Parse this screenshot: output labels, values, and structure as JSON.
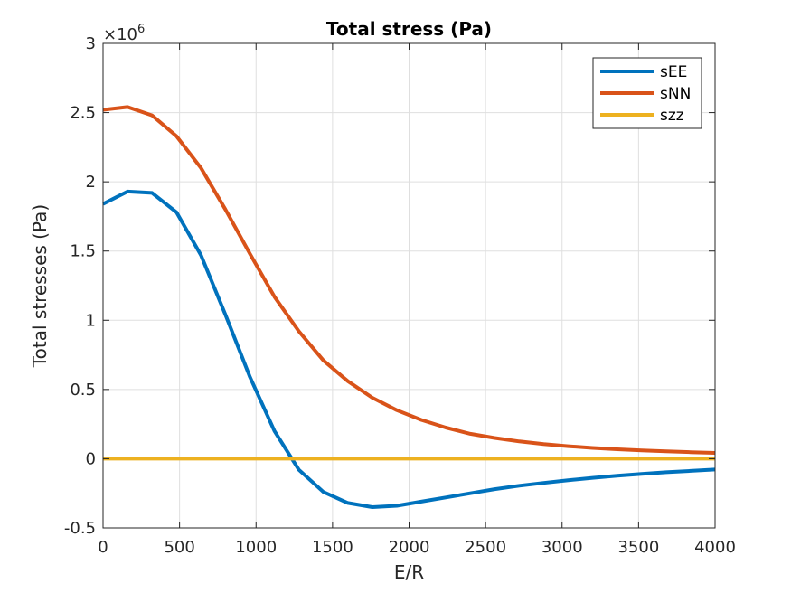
{
  "chart_data": {
    "type": "line",
    "title": "Total stress (Pa)",
    "xlabel": "E/R",
    "ylabel": "Total stresses (Pa)",
    "y_exponent_label": "×10",
    "y_exponent_power": "6",
    "xlim": [
      0,
      4000
    ],
    "ylim": [
      -0.5,
      3
    ],
    "x_ticks": [
      0,
      500,
      1000,
      1500,
      2000,
      2500,
      3000,
      3500,
      4000
    ],
    "x_tick_labels": [
      "0",
      "500",
      "1000",
      "1500",
      "2000",
      "2500",
      "3000",
      "3500",
      "4000"
    ],
    "y_ticks": [
      -0.5,
      0,
      0.5,
      1,
      1.5,
      2,
      2.5,
      3
    ],
    "y_tick_labels": [
      "-0.5",
      "0",
      "0.5",
      "1",
      "1.5",
      "2",
      "2.5",
      "3"
    ],
    "grid": true,
    "legend_position": "top-right",
    "series": [
      {
        "name": "sEE",
        "color": "#0072BD",
        "x": [
          0,
          160,
          320,
          480,
          640,
          800,
          960,
          1120,
          1280,
          1440,
          1600,
          1760,
          1920,
          2080,
          2240,
          2400,
          2560,
          2720,
          2880,
          3040,
          3200,
          3360,
          3520,
          3680,
          3840,
          4000
        ],
        "y": [
          1.84,
          1.93,
          1.92,
          1.78,
          1.47,
          1.04,
          0.59,
          0.2,
          -0.08,
          -0.24,
          -0.32,
          -0.35,
          -0.34,
          -0.31,
          -0.28,
          -0.25,
          -0.22,
          -0.195,
          -0.175,
          -0.155,
          -0.138,
          -0.123,
          -0.11,
          -0.098,
          -0.088,
          -0.078
        ]
      },
      {
        "name": "sNN",
        "color": "#D95319",
        "x": [
          0,
          160,
          320,
          480,
          640,
          800,
          960,
          1120,
          1280,
          1440,
          1600,
          1760,
          1920,
          2080,
          2240,
          2400,
          2560,
          2720,
          2880,
          3040,
          3200,
          3360,
          3520,
          3680,
          3840,
          4000
        ],
        "y": [
          2.52,
          2.54,
          2.48,
          2.33,
          2.1,
          1.8,
          1.48,
          1.17,
          0.92,
          0.71,
          0.56,
          0.44,
          0.35,
          0.28,
          0.225,
          0.18,
          0.15,
          0.125,
          0.105,
          0.09,
          0.078,
          0.068,
          0.06,
          0.053,
          0.047,
          0.042
        ]
      },
      {
        "name": "szz",
        "color": "#EDB120",
        "x": [
          0,
          4000
        ],
        "y": [
          0,
          0
        ]
      }
    ]
  }
}
